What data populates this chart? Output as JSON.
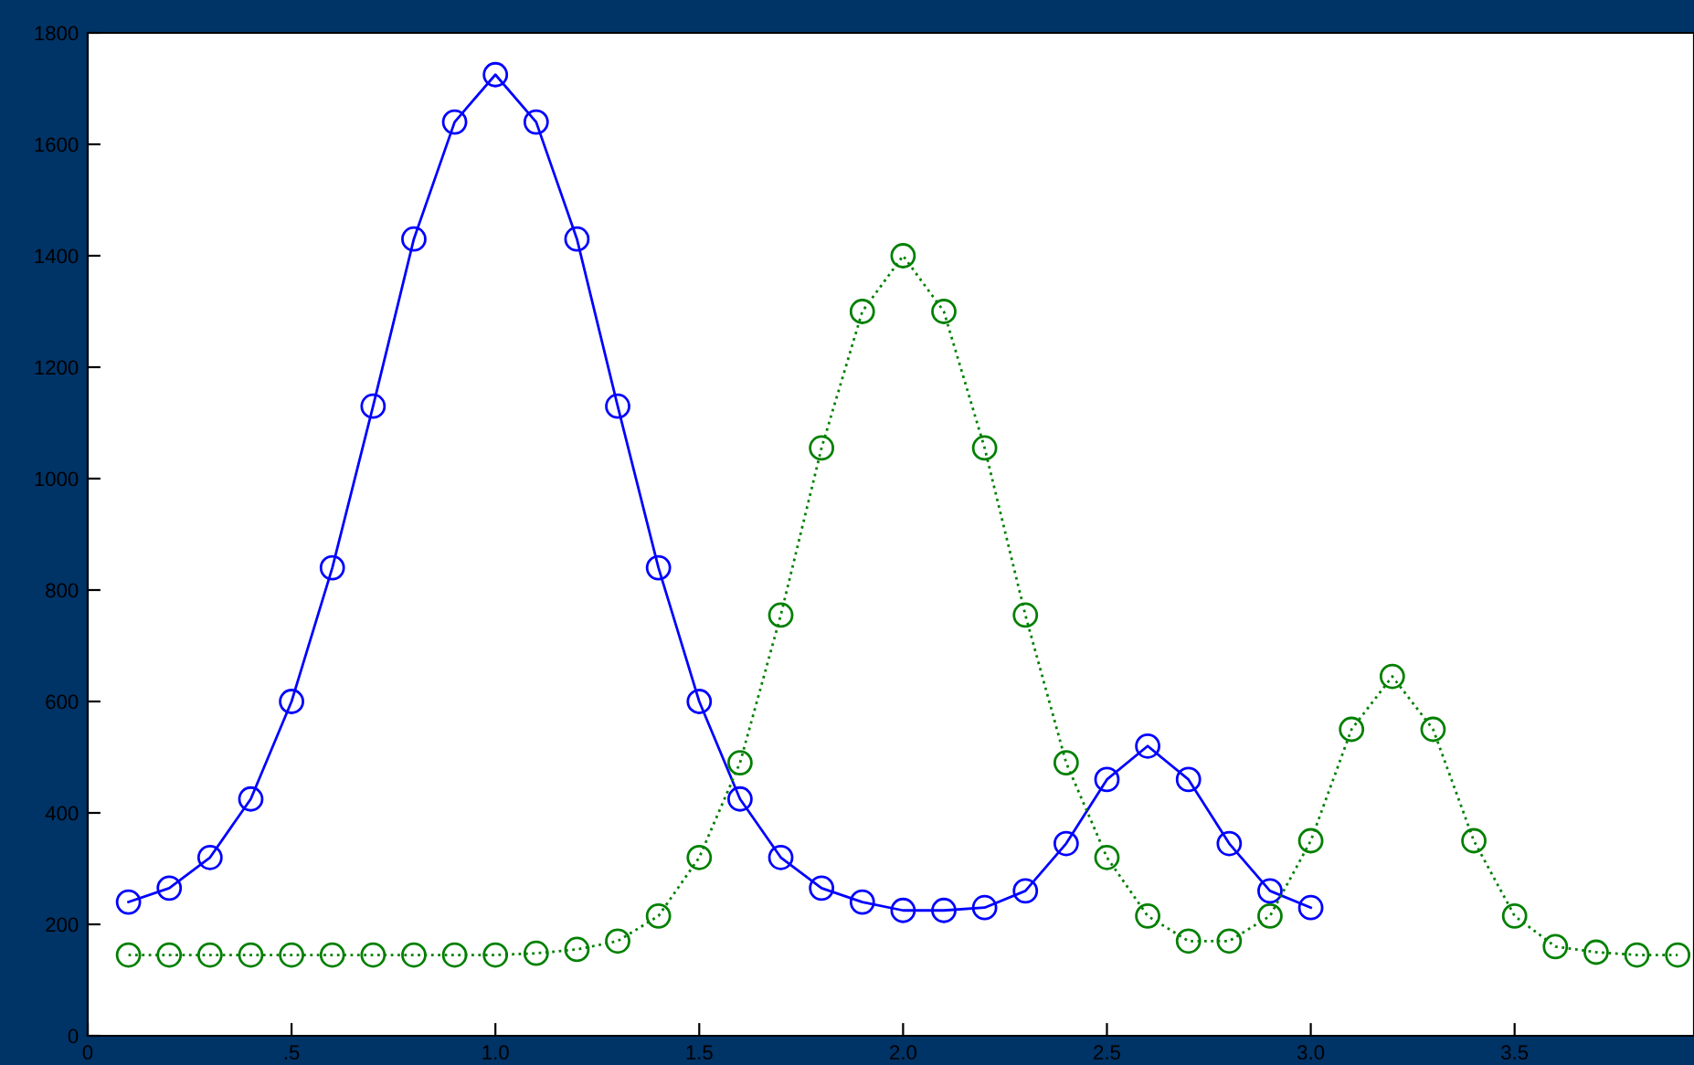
{
  "chart_data": {
    "type": "line",
    "marker": "circle",
    "grid": false,
    "xlim": [
      0,
      3.94
    ],
    "ylim": [
      0,
      1800
    ],
    "xticks": [
      0,
      {
        "value": 0.5,
        "label": ".5"
      },
      {
        "value": 1,
        "label": "1.0"
      },
      {
        "value": 1.5,
        "label": "1.5"
      },
      {
        "value": 2,
        "label": "2.0"
      },
      {
        "value": 2.5,
        "label": "2.5"
      },
      {
        "value": 3,
        "label": "3.0"
      },
      {
        "value": 3.5,
        "label": "3.5"
      }
    ],
    "yticks": [
      0,
      200,
      400,
      600,
      800,
      1000,
      1200,
      1400,
      1600,
      1800
    ],
    "series": [
      {
        "color": "#0000ff",
        "line_style": "solid",
        "x": [
          0.1,
          0.2,
          0.3,
          0.4,
          0.5,
          0.6,
          0.7,
          0.8,
          0.9,
          1.0,
          1.1,
          1.2,
          1.3,
          1.4,
          1.5,
          1.6,
          1.7,
          1.8,
          1.9,
          2.0,
          2.1,
          2.2,
          2.3,
          2.4,
          2.5,
          2.6,
          2.7,
          2.8,
          2.9,
          3.0
        ],
        "values": [
          240,
          265,
          320,
          425,
          600,
          840,
          1130,
          1430,
          1640,
          1725,
          1640,
          1430,
          1130,
          840,
          600,
          425,
          320,
          265,
          240,
          225,
          225,
          230,
          260,
          345,
          460,
          520,
          460,
          345,
          260,
          230
        ]
      },
      {
        "color": "#008000",
        "line_style": "dotted",
        "x": [
          0.1,
          0.2,
          0.3,
          0.4,
          0.5,
          0.6,
          0.7,
          0.8,
          0.9,
          1.0,
          1.1,
          1.2,
          1.3,
          1.4,
          1.5,
          1.6,
          1.7,
          1.8,
          1.9,
          2.0,
          2.1,
          2.2,
          2.3,
          2.4,
          2.5,
          2.6,
          2.7,
          2.8,
          2.9,
          3.0,
          3.1,
          3.2,
          3.3,
          3.4,
          3.5,
          3.6,
          3.7,
          3.8,
          3.9
        ],
        "values": [
          145,
          145,
          145,
          145,
          145,
          145,
          145,
          145,
          145,
          145,
          148,
          155,
          170,
          215,
          320,
          490,
          755,
          1055,
          1300,
          1400,
          1300,
          1055,
          755,
          490,
          320,
          215,
          170,
          170,
          215,
          350,
          550,
          645,
          550,
          350,
          215,
          160,
          150,
          145,
          145
        ]
      }
    ]
  }
}
